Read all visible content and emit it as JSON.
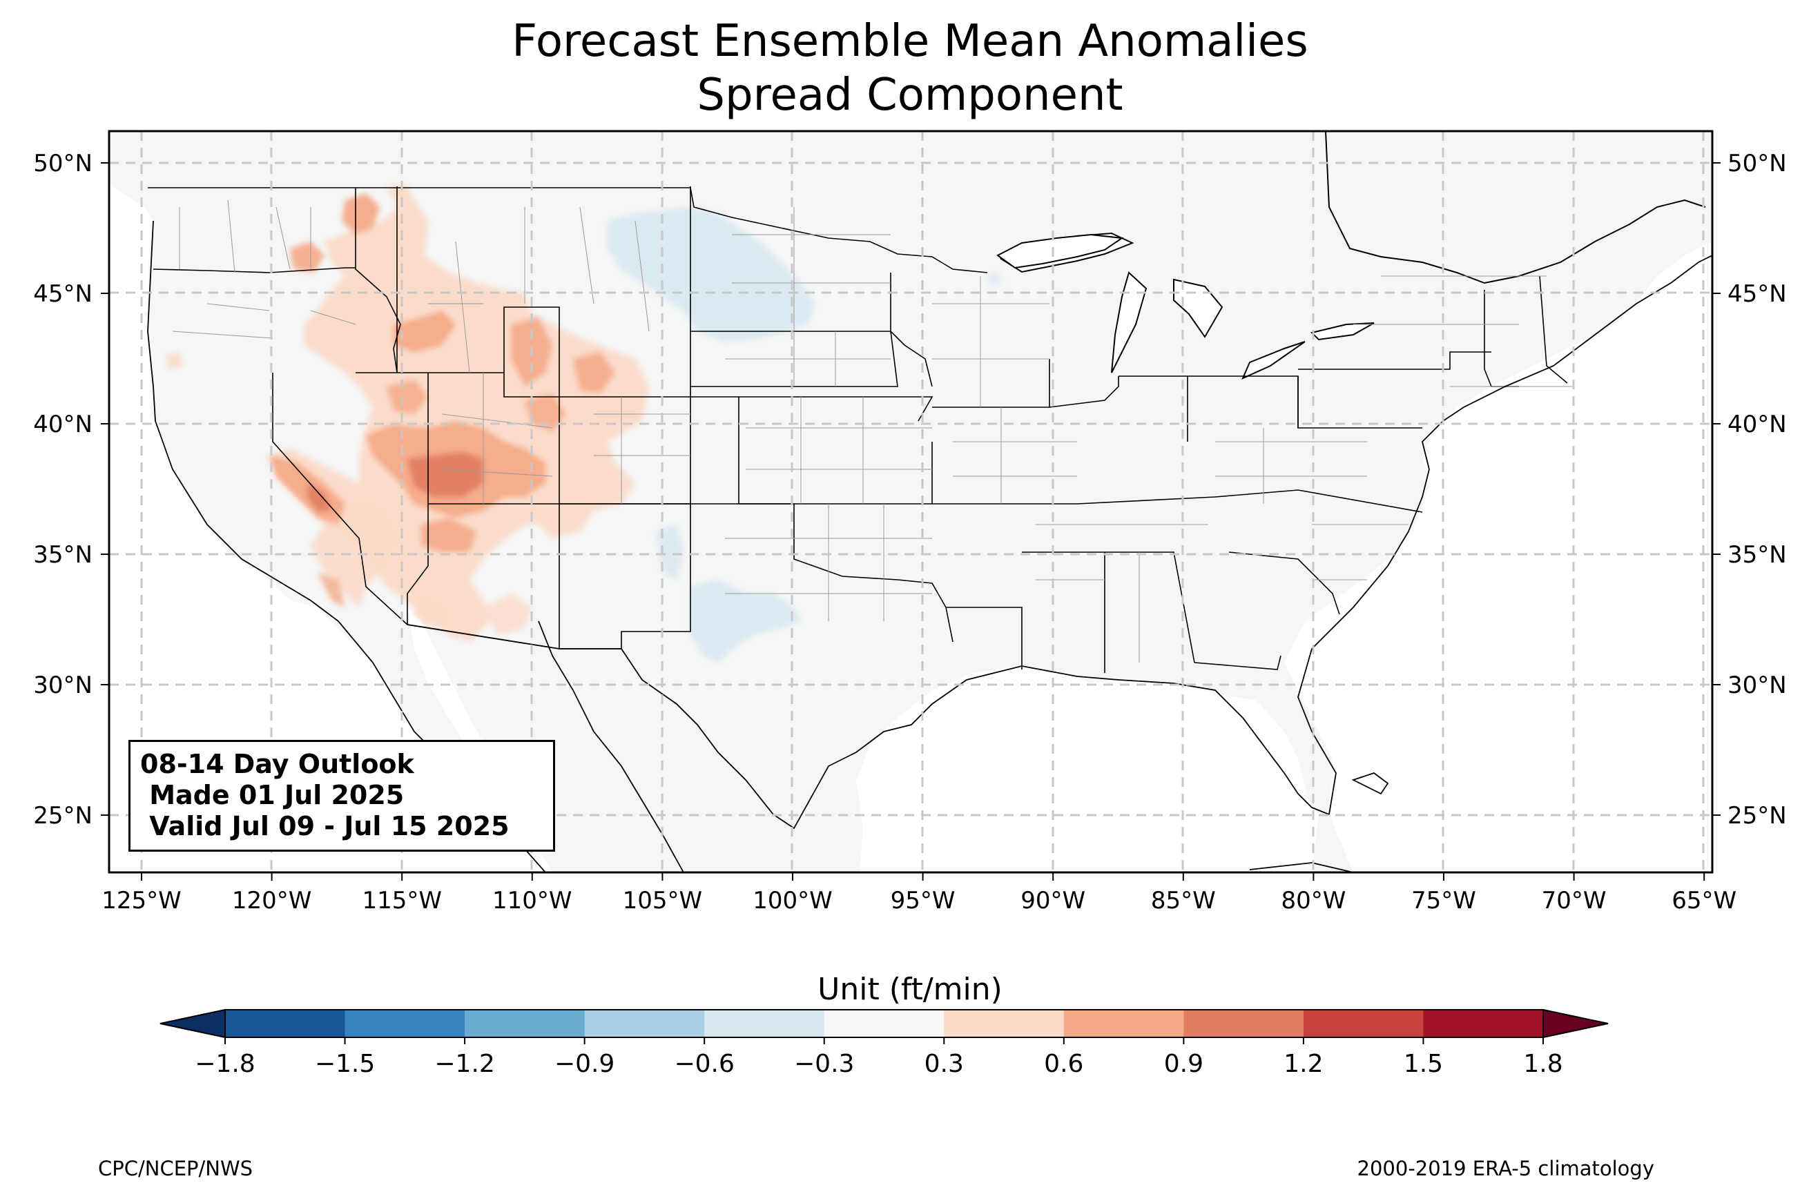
{
  "title": {
    "line1": "Forecast Ensemble Mean Anomalies",
    "line2": "Spread Component"
  },
  "info_box": {
    "line1": "08-14 Day Outlook",
    "line2": " Made 01 Jul 2025",
    "line3": " Valid Jul 09 - Jul 15 2025"
  },
  "colorbar": {
    "title": "Unit (ft/min)",
    "ticks": [
      "−1.8",
      "−1.5",
      "−1.2",
      "−0.9",
      "−0.6",
      "−0.3",
      "0.3",
      "0.6",
      "0.9",
      "1.2",
      "1.5",
      "1.8"
    ],
    "colors": [
      "#1a5597",
      "#3884bf",
      "#6aabd2",
      "#a9d0e5",
      "#d9e8f0",
      "#f7f7f7",
      "#fbdac8",
      "#f4aa88",
      "#e17d61",
      "#c7413c",
      "#a11428"
    ],
    "under_color": "#0c2f62",
    "over_color": "#67001f"
  },
  "axes": {
    "lon_labels": [
      "125°W",
      "120°W",
      "115°W",
      "110°W",
      "105°W",
      "100°W",
      "95°W",
      "90°W",
      "85°W",
      "80°W",
      "75°W",
      "70°W",
      "65°W"
    ],
    "lat_labels": [
      "50°N",
      "45°N",
      "40°N",
      "35°N",
      "30°N",
      "25°N"
    ]
  },
  "footer": {
    "left": "CPC/NCEP/NWS",
    "right": "2000-2019 ERA-5 climatology"
  },
  "colors": {
    "land": "#f5f6f6",
    "grid": "#c8c8c8"
  }
}
